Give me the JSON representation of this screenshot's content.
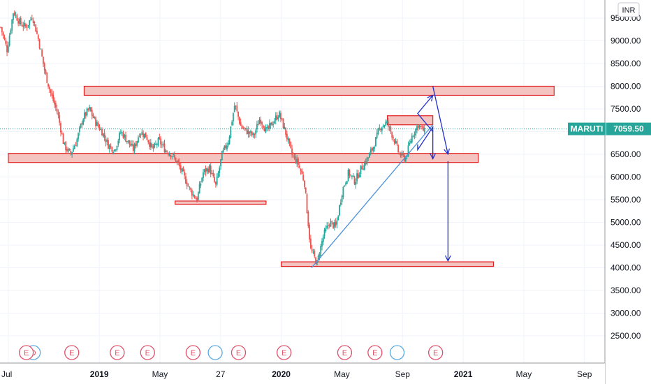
{
  "currency": "INR",
  "symbol": "MARUTI",
  "last_price": "7059.50",
  "colors": {
    "up": "#26a69a",
    "down": "#ef5350",
    "zone_fill": "#f4c4c0",
    "zone_stroke": "#e02020",
    "arrow": "#1f2ecc",
    "trendline": "#4a90d9",
    "price_tag": "#26a69a",
    "event": "#e0506a",
    "dividend": "#5aa8e0"
  },
  "chart_data": {
    "type": "candlestick",
    "ylim": [
      1900,
      9900
    ],
    "y_ticks": [
      "2500.00",
      "3000.00",
      "3500.00",
      "4000.00",
      "4500.00",
      "5000.00",
      "5500.00",
      "6000.00",
      "6500.00",
      "7000.00",
      "7500.00",
      "8000.00",
      "8500.00",
      "9000.00",
      "9500.00"
    ],
    "x_ticks": [
      "Jul",
      "2019",
      "May",
      "27",
      "2020",
      "May",
      "Sep",
      "2021",
      "May",
      "Sep"
    ],
    "x_ticks_bold": [
      "2019",
      "2020",
      "2021"
    ],
    "series_path": [
      9300,
      8800,
      9650,
      9400,
      9300,
      9550,
      9000,
      8300,
      7800,
      7400,
      6700,
      6500,
      6800,
      7300,
      7500,
      7200,
      7000,
      6700,
      6600,
      7000,
      6800,
      6600,
      7000,
      6900,
      6600,
      6800,
      6600,
      6500,
      6300,
      6000,
      5700,
      5500,
      6100,
      6200,
      5800,
      6500,
      6800,
      7600,
      7100,
      7000,
      6900,
      7300,
      7000,
      7200,
      7400,
      7000,
      6500,
      6300,
      5900,
      4400,
      4100,
      4700,
      5000,
      4900,
      5700,
      6100,
      5900,
      6200,
      6400,
      6700,
      7100,
      7200,
      6900,
      6500,
      6400,
      6900,
      7150,
      7000
    ],
    "series_start_date": "2018-07",
    "series_end_date": "2020-11",
    "resistance_zones": [
      {
        "date_start": "2018-12",
        "date_end": "2021-07",
        "low": 7800,
        "high": 8000
      },
      {
        "date_start": "2018-07",
        "date_end": "2021-02",
        "low": 6320,
        "high": 6520
      },
      {
        "date_start": "2019-06",
        "date_end": "2019-12",
        "low": 5400,
        "high": 5470
      },
      {
        "date_start": "2020-01",
        "date_end": "2021-03",
        "low": 4030,
        "high": 4130
      },
      {
        "date_start": "2020-08",
        "date_end": "2020-11",
        "low": 7150,
        "high": 7350
      }
    ],
    "trendline": {
      "from": {
        "date": "2020-03",
        "value": 4000
      },
      "to": {
        "date": "2020-11",
        "value": 7150
      }
    },
    "projection_arrows": [
      {
        "points": [
          [
            "2020-10",
            6720
          ],
          [
            "2020-10",
            6600
          ],
          [
            "2020-11",
            7100
          ],
          [
            "2020-11",
            6400
          ]
        ]
      },
      {
        "points": [
          [
            "2020-11",
            7000
          ],
          [
            "2020-10",
            7400
          ],
          [
            "2020-11",
            7800
          ]
        ]
      },
      {
        "points": [
          [
            "2020-11",
            8000
          ],
          [
            "2020-12",
            6500
          ]
        ]
      },
      {
        "points": [
          [
            "2020-12",
            6350
          ],
          [
            "2020-12",
            4150
          ]
        ]
      }
    ],
    "events": [
      {
        "date": "2018-08",
        "label": "E"
      },
      {
        "date": "2018-11",
        "label": "E"
      },
      {
        "date": "2019-02",
        "label": "E"
      },
      {
        "date": "2019-04",
        "label": "E"
      },
      {
        "date": "2019-07",
        "label": "E"
      },
      {
        "date": "2019-10",
        "label": "E"
      },
      {
        "date": "2020-01",
        "label": "E"
      },
      {
        "date": "2020-05",
        "label": "E"
      },
      {
        "date": "2020-07",
        "label": "E"
      },
      {
        "date": "2020-11",
        "label": "E"
      }
    ],
    "dividends": [
      {
        "date": "2018-08",
        "label": "D"
      },
      {
        "date": "2019-08",
        "label": ""
      },
      {
        "date": "2020-08",
        "label": ""
      }
    ]
  }
}
